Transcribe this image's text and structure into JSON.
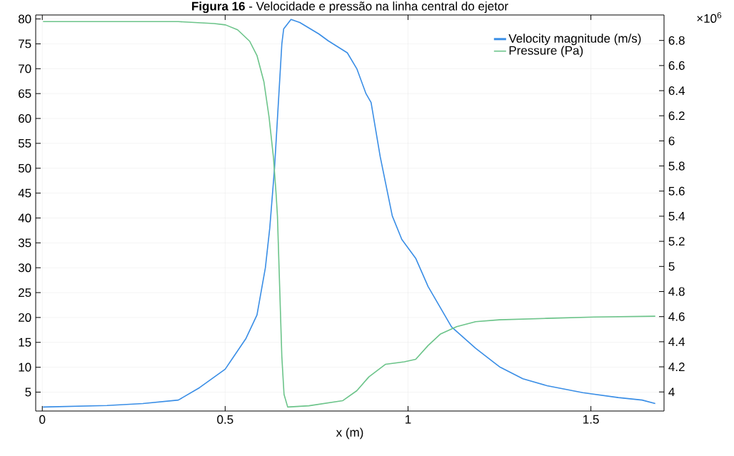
{
  "chart_data": {
    "type": "line",
    "title": "**Figura 16** - Velocidade e pressão na linha central do ejetor",
    "xlabel": "x (m)",
    "xlim": [
      -0.018,
      1.7
    ],
    "xticks": [
      0,
      0.5,
      1,
      1.5
    ],
    "ylim": [
      1.2,
      80.8
    ],
    "yticks": [
      5,
      10,
      15,
      20,
      25,
      30,
      35,
      40,
      45,
      50,
      55,
      60,
      65,
      70,
      75,
      80
    ],
    "y2lim": [
      3.848,
      7.003
    ],
    "y2ticks": [
      4,
      4.2,
      4.4,
      4.6,
      4.8,
      5,
      5.2,
      5.4,
      5.6,
      5.8,
      6,
      6.2,
      6.4,
      6.6,
      6.8
    ],
    "annotations": [
      "×10$^{6}$"
    ],
    "grid": true,
    "legend": "top right",
    "series": [
      {
        "name": "Velocity magnitude (m/s)",
        "color": "#3a8ee6",
        "x": [
          0.002,
          0.177,
          0.275,
          0.372,
          0.43,
          0.5,
          0.557,
          0.587,
          0.61,
          0.622,
          0.635,
          0.647,
          0.655,
          0.66,
          0.68,
          0.704,
          0.756,
          0.782,
          0.834,
          0.86,
          0.885,
          0.899,
          0.924,
          0.957,
          0.983,
          1.021,
          1.055,
          1.119,
          1.185,
          1.25,
          1.314,
          1.38,
          1.478,
          1.575,
          1.64,
          1.676
        ],
        "values": [
          2.0,
          2.3,
          2.7,
          3.4,
          5.9,
          9.6,
          15.8,
          20.5,
          30,
          38,
          50,
          65,
          75,
          78,
          79.9,
          79.3,
          77,
          75.6,
          73.2,
          70,
          65,
          63.2,
          52.3,
          40.4,
          35.7,
          31.9,
          26.2,
          18.1,
          13.8,
          10.1,
          7.7,
          6.3,
          4.9,
          3.9,
          3.4,
          2.7
        ]
      },
      {
        "name": "Pressure (Pa)",
        "color": "#6cc48a",
        "axis": "y2",
        "x": [
          0.002,
          0.372,
          0.47,
          0.501,
          0.534,
          0.567,
          0.587,
          0.606,
          0.62,
          0.632,
          0.639,
          0.643,
          0.649,
          0.655,
          0.661,
          0.671,
          0.729,
          0.821,
          0.86,
          0.893,
          0.938,
          0.99,
          1.021,
          1.055,
          1.088,
          1.133,
          1.185,
          1.25,
          1.38,
          1.509,
          1.676
        ],
        "values": [
          6.95,
          6.95,
          6.935,
          6.924,
          6.885,
          6.794,
          6.68,
          6.47,
          6.19,
          5.87,
          5.59,
          5.4,
          4.84,
          4.28,
          3.98,
          3.88,
          3.89,
          3.93,
          4.01,
          4.12,
          4.22,
          4.24,
          4.26,
          4.37,
          4.46,
          4.52,
          4.56,
          4.575,
          4.586,
          4.597,
          4.603
        ]
      }
    ]
  }
}
